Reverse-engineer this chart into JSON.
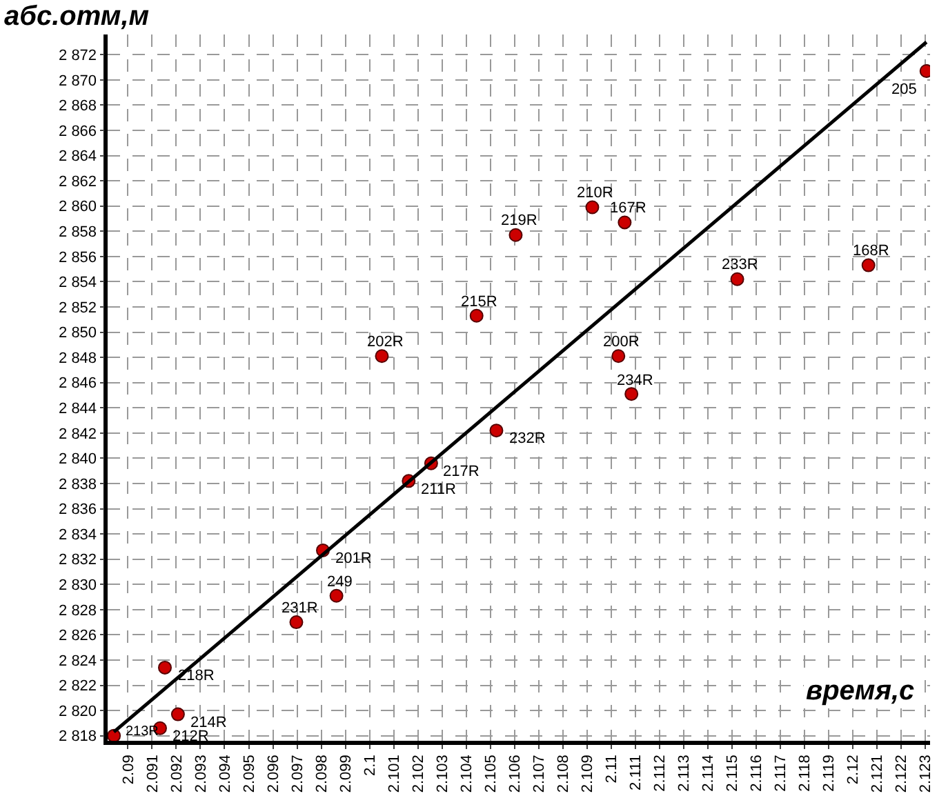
{
  "chart_data": {
    "type": "scatter",
    "xlabel": "время,с",
    "ylabel": "абс.отм,м",
    "x": [
      2.08942,
      2.09133,
      2.09207,
      2.09153,
      2.09697,
      2.09863,
      2.09807,
      2.10162,
      2.10255,
      2.10525,
      2.10443,
      2.10605,
      2.10922,
      2.11056,
      2.1103,
      2.11084,
      2.11522,
      2.12065,
      2.12305,
      2.10051
    ],
    "series": [
      {
        "color": "#cc0000",
        "marker": "circle",
        "values": [
          2818.0,
          2818.6,
          2819.7,
          2823.4,
          2827.0,
          2829.1,
          2832.7,
          2838.2,
          2839.6,
          2842.2,
          2851.3,
          2857.7,
          2859.9,
          2858.7,
          2848.1,
          2845.1,
          2854.2,
          2855.3,
          2870.7,
          2848.1
        ]
      },
      {
        "type": "line",
        "color": "#000000",
        "line_style": "solid",
        "x": [
          2.08942,
          2.12305
        ],
        "values": [
          2818.3,
          2873.0
        ]
      }
    ],
    "annotations": [
      {
        "text": "213R",
        "x": 2.08942,
        "y": 2818.0
      },
      {
        "text": "212R",
        "x": 2.09133,
        "y": 2818.6
      },
      {
        "text": "214R",
        "x": 2.09207,
        "y": 2819.7
      },
      {
        "text": "218R",
        "x": 2.09153,
        "y": 2823.4
      },
      {
        "text": "231R",
        "x": 2.09697,
        "y": 2827.0
      },
      {
        "text": "249",
        "x": 2.09863,
        "y": 2829.1
      },
      {
        "text": "201R",
        "x": 2.09807,
        "y": 2832.7
      },
      {
        "text": "211R",
        "x": 2.10162,
        "y": 2838.2
      },
      {
        "text": "217R",
        "x": 2.10255,
        "y": 2839.6
      },
      {
        "text": "232R",
        "x": 2.10525,
        "y": 2842.2
      },
      {
        "text": "215R",
        "x": 2.10443,
        "y": 2851.3
      },
      {
        "text": "219R",
        "x": 2.10605,
        "y": 2857.7
      },
      {
        "text": "210R",
        "x": 2.10922,
        "y": 2859.9
      },
      {
        "text": "167R",
        "x": 2.11056,
        "y": 2858.7
      },
      {
        "text": "200R",
        "x": 2.1103,
        "y": 2848.1
      },
      {
        "text": "234R",
        "x": 2.11084,
        "y": 2845.1
      },
      {
        "text": "233R",
        "x": 2.11522,
        "y": 2854.2
      },
      {
        "text": "168R",
        "x": 2.12065,
        "y": 2855.3
      },
      {
        "text": "205",
        "x": 2.12305,
        "y": 2870.7
      },
      {
        "text": "202R",
        "x": 2.10051,
        "y": 2848.1
      }
    ],
    "xlim": [
      2.08916,
      2.1232
    ],
    "xticks": [
      2.09,
      2.091,
      2.092,
      2.093,
      2.094,
      2.095,
      2.096,
      2.097,
      2.098,
      2.099,
      2.1,
      2.101,
      2.102,
      2.103,
      2.104,
      2.105,
      2.106,
      2.107,
      2.108,
      2.109,
      2.11,
      2.111,
      2.112,
      2.113,
      2.114,
      2.115,
      2.116,
      2.117,
      2.118,
      2.119,
      2.12,
      2.121,
      2.122,
      2.123
    ],
    "ylim": [
      2817.6,
      2873.6
    ],
    "yticks": [
      {
        "value": 2818,
        "label": "2 818"
      },
      {
        "value": 2820,
        "label": "2 820"
      },
      {
        "value": 2822,
        "label": "2 822"
      },
      {
        "value": 2824,
        "label": "2 824"
      },
      {
        "value": 2826,
        "label": "2 826"
      },
      {
        "value": 2828,
        "label": "2 828"
      },
      {
        "value": 2830,
        "label": "2 830"
      },
      {
        "value": 2832,
        "label": "2 832"
      },
      {
        "value": 2834,
        "label": "2 834"
      },
      {
        "value": 2836,
        "label": "2 836"
      },
      {
        "value": 2838,
        "label": "2 838"
      },
      {
        "value": 2840,
        "label": "2 840"
      },
      {
        "value": 2842,
        "label": "2 842"
      },
      {
        "value": 2844,
        "label": "2 844"
      },
      {
        "value": 2846,
        "label": "2 846"
      },
      {
        "value": 2848,
        "label": "2 848"
      },
      {
        "value": 2850,
        "label": "2 850"
      },
      {
        "value": 2852,
        "label": "2 852"
      },
      {
        "value": 2854,
        "label": "2 854"
      },
      {
        "value": 2856,
        "label": "2 856"
      },
      {
        "value": 2858,
        "label": "2 858"
      },
      {
        "value": 2860,
        "label": "2 860"
      },
      {
        "value": 2862,
        "label": "2 862"
      },
      {
        "value": 2864,
        "label": "2 864"
      },
      {
        "value": 2866,
        "label": "2 866"
      },
      {
        "value": 2868,
        "label": "2 868"
      },
      {
        "value": 2870,
        "label": "2 870"
      },
      {
        "value": 2872,
        "label": "2 872"
      }
    ],
    "grid": true
  }
}
